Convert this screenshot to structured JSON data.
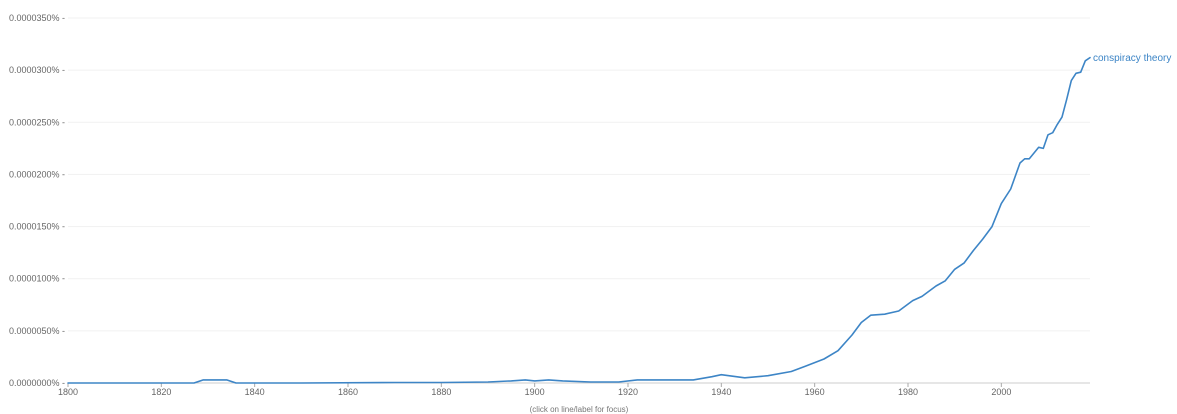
{
  "chart_data": {
    "type": "line",
    "title": "",
    "xlabel": "",
    "ylabel": "",
    "xlim": [
      1800,
      2019
    ],
    "ylim": [
      0,
      3.5e-05
    ],
    "y_ticks": [
      {
        "value": 0.0,
        "label": "0.0000000%"
      },
      {
        "value": 5e-06,
        "label": "0.0000050%"
      },
      {
        "value": 1e-05,
        "label": "0.0000100%"
      },
      {
        "value": 1.5e-05,
        "label": "0.0000150%"
      },
      {
        "value": 2e-05,
        "label": "0.0000200%"
      },
      {
        "value": 2.5e-05,
        "label": "0.0000250%"
      },
      {
        "value": 3e-05,
        "label": "0.0000300%"
      },
      {
        "value": 3.5e-05,
        "label": "0.0000350%"
      }
    ],
    "x_ticks": [
      {
        "value": 1800,
        "label": "1800"
      },
      {
        "value": 1820,
        "label": "1820"
      },
      {
        "value": 1840,
        "label": "1840"
      },
      {
        "value": 1860,
        "label": "1860"
      },
      {
        "value": 1880,
        "label": "1880"
      },
      {
        "value": 1900,
        "label": "1900"
      },
      {
        "value": 1920,
        "label": "1920"
      },
      {
        "value": 1940,
        "label": "1940"
      },
      {
        "value": 1960,
        "label": "1960"
      },
      {
        "value": 1980,
        "label": "1980"
      },
      {
        "value": 2000,
        "label": "2000"
      }
    ],
    "grid": true,
    "hint": "(click on line/label for focus)",
    "series": [
      {
        "name": "conspiracy theory",
        "color": "#3d85c6",
        "points": [
          [
            1800,
            0
          ],
          [
            1827,
            0
          ],
          [
            1829,
            3e-07
          ],
          [
            1834,
            3e-07
          ],
          [
            1836,
            0
          ],
          [
            1850,
            0
          ],
          [
            1870,
            5e-08
          ],
          [
            1880,
            5e-08
          ],
          [
            1890,
            1e-07
          ],
          [
            1895,
            2e-07
          ],
          [
            1898,
            3e-07
          ],
          [
            1900,
            2e-07
          ],
          [
            1903,
            3e-07
          ],
          [
            1906,
            2e-07
          ],
          [
            1912,
            1e-07
          ],
          [
            1918,
            1e-07
          ],
          [
            1922,
            3e-07
          ],
          [
            1930,
            3e-07
          ],
          [
            1934,
            3e-07
          ],
          [
            1938,
            6e-07
          ],
          [
            1940,
            8e-07
          ],
          [
            1945,
            5e-07
          ],
          [
            1950,
            7e-07
          ],
          [
            1955,
            1.1e-06
          ],
          [
            1958,
            1.6e-06
          ],
          [
            1962,
            2.3e-06
          ],
          [
            1965,
            3.1e-06
          ],
          [
            1968,
            4.6e-06
          ],
          [
            1970,
            5.8e-06
          ],
          [
            1972,
            6.5e-06
          ],
          [
            1975,
            6.6e-06
          ],
          [
            1978,
            6.9e-06
          ],
          [
            1981,
            7.9e-06
          ],
          [
            1983,
            8.3e-06
          ],
          [
            1986,
            9.3e-06
          ],
          [
            1988,
            9.8e-06
          ],
          [
            1990,
            1.09e-05
          ],
          [
            1992,
            1.15e-05
          ],
          [
            1994,
            1.27e-05
          ],
          [
            1996,
            1.38e-05
          ],
          [
            1998,
            1.5e-05
          ],
          [
            2000,
            1.72e-05
          ],
          [
            2002,
            1.86e-05
          ],
          [
            2004,
            2.11e-05
          ],
          [
            2005,
            2.15e-05
          ],
          [
            2006,
            2.15e-05
          ],
          [
            2008,
            2.26e-05
          ],
          [
            2009,
            2.25e-05
          ],
          [
            2010,
            2.38e-05
          ],
          [
            2011,
            2.4e-05
          ],
          [
            2012,
            2.48e-05
          ],
          [
            2013,
            2.55e-05
          ],
          [
            2014,
            2.72e-05
          ],
          [
            2015,
            2.9e-05
          ],
          [
            2016,
            2.97e-05
          ],
          [
            2017,
            2.98e-05
          ],
          [
            2018,
            3.09e-05
          ],
          [
            2019,
            3.12e-05
          ]
        ]
      }
    ]
  }
}
